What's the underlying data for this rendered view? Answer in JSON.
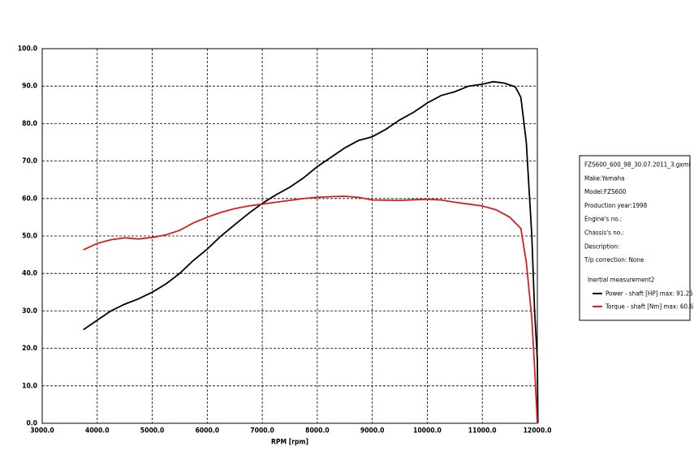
{
  "chart_data": {
    "type": "line",
    "x_label": "RPM [rpm]",
    "xlim": [
      3000,
      12000
    ],
    "xticks": [
      {
        "value": 3000,
        "label": "3000.0"
      },
      {
        "value": 4000,
        "label": "4000.0"
      },
      {
        "value": 5000,
        "label": "5000.0"
      },
      {
        "value": 6000,
        "label": "6000.0"
      },
      {
        "value": 7000,
        "label": "7000.0"
      },
      {
        "value": 8000,
        "label": "8000.0"
      },
      {
        "value": 9000,
        "label": "9000.0"
      },
      {
        "value": 10000,
        "label": "10000.0"
      },
      {
        "value": 11000,
        "label": "11000.0"
      },
      {
        "value": 12000,
        "label": "12000.0"
      }
    ],
    "ylim": [
      0,
      100
    ],
    "yticks": [
      {
        "value": 0,
        "label": "0.0"
      },
      {
        "value": 10,
        "label": "10.0"
      },
      {
        "value": 20,
        "label": "20.0"
      },
      {
        "value": 30,
        "label": "30.0"
      },
      {
        "value": 40,
        "label": "40.0"
      },
      {
        "value": 50,
        "label": "50.0"
      },
      {
        "value": 60,
        "label": "60.0"
      },
      {
        "value": 70,
        "label": "70.0"
      },
      {
        "value": 80,
        "label": "80.0"
      },
      {
        "value": 90,
        "label": "90.0"
      },
      {
        "value": 100,
        "label": "100.0"
      }
    ],
    "grid": true,
    "legend_info": [
      "FZS600_600_98_30.07.2011_3.gxml",
      "Make:Yamaha",
      "Model:FZS600",
      "Production year:1998",
      "Engine's no.:",
      "Chassis's no.:",
      "Description:",
      "T/p correction: None"
    ],
    "legend_group": "Inertial measurement2",
    "series": [
      {
        "name": "Power - shaft [HP] max: 91.25",
        "color": "#000000",
        "x": [
          3750,
          4000,
          4250,
          4500,
          4750,
          5000,
          5250,
          5500,
          5750,
          6000,
          6250,
          6500,
          6750,
          7000,
          7250,
          7500,
          7750,
          8000,
          8250,
          8500,
          8750,
          9000,
          9250,
          9500,
          9750,
          10000,
          10250,
          10500,
          10750,
          11000,
          11200,
          11400,
          11600,
          11700,
          11800,
          11900,
          11950,
          12000,
          12010
        ],
        "values": [
          25,
          27.5,
          30,
          31.8,
          33.2,
          35,
          37.2,
          40,
          43.5,
          46.5,
          50,
          53,
          56,
          58.7,
          61,
          63,
          65.5,
          68.5,
          71,
          73.5,
          75.5,
          76.5,
          78.5,
          81,
          83,
          85.5,
          87.5,
          88.5,
          90,
          90.5,
          91.2,
          90.8,
          89.8,
          87,
          75,
          50,
          30,
          17,
          0
        ]
      },
      {
        "name": "Torque - shaft [Nm] max: 60.63",
        "color": "#d42020",
        "x": [
          3750,
          4000,
          4250,
          4500,
          4750,
          5000,
          5250,
          5500,
          5750,
          6000,
          6250,
          6500,
          6750,
          7000,
          7250,
          7500,
          7750,
          8000,
          8250,
          8500,
          8750,
          9000,
          9500,
          10000,
          10250,
          10500,
          10750,
          11000,
          11250,
          11500,
          11700,
          11800,
          11900,
          11950,
          12000
        ],
        "values": [
          46.3,
          48,
          49,
          49.5,
          49.2,
          49.6,
          50.3,
          51.5,
          53.5,
          55,
          56.3,
          57.3,
          58,
          58.5,
          59,
          59.5,
          60,
          60.3,
          60.5,
          60.6,
          60.3,
          59.6,
          59.5,
          59.8,
          59.6,
          59,
          58.5,
          58,
          57,
          55,
          52,
          43,
          28,
          15,
          0
        ]
      }
    ]
  }
}
